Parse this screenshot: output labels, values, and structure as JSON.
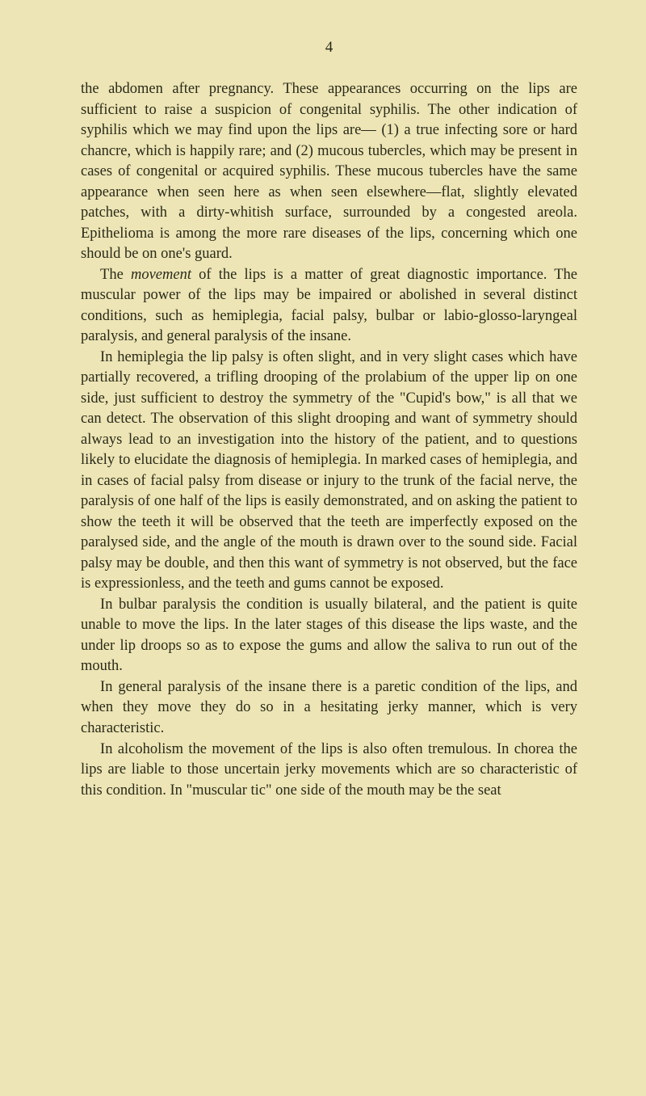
{
  "page_number": "4",
  "paragraphs": [
    {
      "indent": false,
      "text": "the abdomen after pregnancy. These appearances occurring on the lips are sufficient to raise a suspicion of congenital syphilis. The other indication of syphilis which we may find upon the lips are— (1) a true infecting sore or hard chancre, which is happily rare; and (2) mucous tubercles, which may be present in cases of congenital or acquired syphilis. These mucous tubercles have the same appearance when seen here as when seen elsewhere—flat, slightly elevated patches, with a dirty-whitish surface, surrounded by a congested areola. Epithelioma is among the more rare diseases of the lips, concerning which one should be on one's guard."
    },
    {
      "indent": true,
      "html": "The <em>movement</em> of the lips is a matter of great diagnostic importance. The muscular power of the lips may be impaired or abolished in several distinct conditions, such as hemiplegia, facial palsy, bulbar or labio-glosso-laryngeal paralysis, and general paralysis of the insane."
    },
    {
      "indent": true,
      "text": "In hemiplegia the lip palsy is often slight, and in very slight cases which have partially recovered, a trifling drooping of the prolabium of the upper lip on one side, just sufficient to destroy the symmetry of the \"Cupid's bow,\" is all that we can detect. The observation of this slight drooping and want of symmetry should always lead to an investigation into the history of the patient, and to questions likely to elucidate the diagnosis of hemiplegia. In marked cases of hemiplegia, and in cases of facial palsy from disease or injury to the trunk of the facial nerve, the paralysis of one half of the lips is easily demonstrated, and on asking the patient to show the teeth it will be observed that the teeth are imperfectly exposed on the paralysed side, and the angle of the mouth is drawn over to the sound side. Facial palsy may be double, and then this want of symmetry is not observed, but the face is expressionless, and the teeth and gums cannot be exposed."
    },
    {
      "indent": true,
      "text": "In bulbar paralysis the condition is usually bilateral, and the patient is quite unable to move the lips. In the later stages of this disease the lips waste, and the under lip droops so as to expose the gums and allow the saliva to run out of the mouth."
    },
    {
      "indent": true,
      "text": "In general paralysis of the insane there is a paretic condition of the lips, and when they move they do so in a hesitating jerky manner, which is very characteristic."
    },
    {
      "indent": true,
      "text": "In alcoholism the movement of the lips is also often tremulous. In chorea the lips are liable to those uncertain jerky movements which are so characteristic of this condition. In \"muscular tic\" one side of the mouth may be the seat"
    }
  ],
  "colors": {
    "background": "#ede5b5",
    "text": "#2a2a1a"
  },
  "typography": {
    "body_fontsize": 18.5,
    "line_height": 1.38,
    "font_family": "Times New Roman"
  }
}
